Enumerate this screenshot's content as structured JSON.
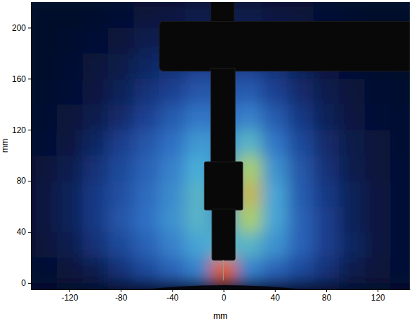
{
  "chart_data": {
    "type": "heatmap",
    "x_label": "mm",
    "y_label": "mm",
    "xlim": [
      -150,
      145
    ],
    "ylim": [
      -5,
      220
    ],
    "xticks": [
      -120,
      -80,
      -40,
      0,
      40,
      80,
      120
    ],
    "yticks": [
      0,
      40,
      80,
      120,
      160,
      200
    ],
    "zlim": [
      0,
      1
    ],
    "x_edges": [
      -150,
      -130,
      -110,
      -90,
      -70,
      -50,
      -30,
      -10,
      10,
      30,
      50,
      70,
      90,
      110,
      130,
      150
    ],
    "y_edges": [
      0,
      20,
      40,
      60,
      80,
      100,
      120,
      140,
      160,
      180,
      200,
      220
    ],
    "intensity": [
      [
        0.08,
        0.1,
        0.15,
        0.25,
        0.35,
        0.45,
        0.55,
        0.95,
        0.55,
        0.45,
        0.35,
        0.25,
        0.15,
        0.1,
        0.08
      ],
      [
        0.1,
        0.15,
        0.25,
        0.35,
        0.45,
        0.55,
        0.65,
        0.7,
        0.7,
        0.6,
        0.45,
        0.3,
        0.2,
        0.12,
        0.08
      ],
      [
        0.12,
        0.18,
        0.28,
        0.4,
        0.5,
        0.6,
        0.7,
        0.6,
        0.8,
        0.65,
        0.45,
        0.3,
        0.18,
        0.12,
        0.08
      ],
      [
        0.12,
        0.18,
        0.28,
        0.38,
        0.48,
        0.58,
        0.7,
        0.6,
        0.85,
        0.65,
        0.42,
        0.28,
        0.18,
        0.12,
        0.08
      ],
      [
        0.1,
        0.15,
        0.25,
        0.35,
        0.45,
        0.55,
        0.68,
        0.6,
        0.8,
        0.6,
        0.4,
        0.25,
        0.15,
        0.1,
        0.08
      ],
      [
        0.08,
        0.12,
        0.2,
        0.3,
        0.4,
        0.5,
        0.62,
        0.6,
        0.7,
        0.52,
        0.35,
        0.22,
        0.14,
        0.1,
        0.07
      ],
      [
        0.07,
        0.1,
        0.15,
        0.22,
        0.32,
        0.42,
        0.52,
        0.5,
        0.55,
        0.42,
        0.28,
        0.18,
        0.12,
        0.08,
        0.07
      ],
      [
        0.06,
        0.08,
        0.12,
        0.18,
        0.25,
        0.32,
        0.4,
        0.4,
        0.42,
        0.32,
        0.22,
        0.15,
        0.1,
        0.07,
        0.06
      ],
      [
        0.05,
        0.07,
        0.1,
        0.14,
        0.2,
        0.25,
        0.3,
        0.3,
        0.3,
        0.25,
        0.18,
        0.12,
        0.08,
        0.06,
        0.05
      ],
      [
        0.05,
        0.06,
        0.08,
        0.1,
        0.15,
        0.18,
        0.2,
        0.2,
        0.2,
        0.18,
        0.14,
        0.1,
        0.07,
        0.05,
        0.05
      ],
      [
        0.04,
        0.05,
        0.06,
        0.08,
        0.1,
        0.12,
        0.14,
        0.14,
        0.14,
        0.12,
        0.1,
        0.08,
        0.06,
        0.05,
        0.04
      ]
    ]
  }
}
